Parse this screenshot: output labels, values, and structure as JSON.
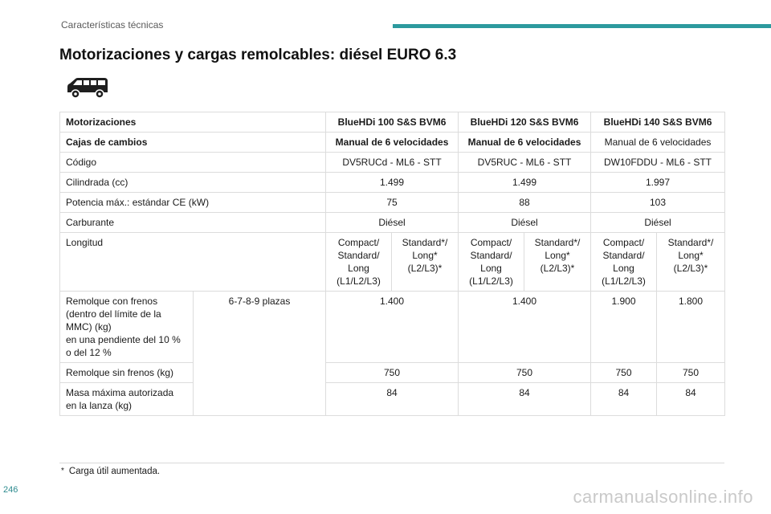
{
  "header": {
    "section": "Características técnicas",
    "accent_color": "#2c9a9e"
  },
  "title": "Motorizaciones y cargas remolcables: diésel EURO 6.3",
  "icon": "van-icon",
  "table": {
    "engines_label": "Motorizaciones",
    "engines": [
      "BlueHDi 100 S&S BVM6",
      "BlueHDi 120 S&S BVM6",
      "BlueHDi 140 S&S BVM6"
    ],
    "gearbox_label": "Cajas de cambios",
    "gearboxes": [
      "Manual de 6 velocidades",
      "Manual de 6 velocidades",
      "Manual de 6 velocidades"
    ],
    "code_label": "Código",
    "codes": [
      "DV5RUCd - ML6 - STT",
      "DV5RUC - ML6 - STT",
      "DW10FDDU - ML6 - STT"
    ],
    "displacement_label": "Cilindrada (cc)",
    "displacements": [
      "1.499",
      "1.499",
      "1.997"
    ],
    "power_label": "Potencia máx.: estándar CE (kW)",
    "powers": [
      "75",
      "88",
      "103"
    ],
    "fuel_label": "Carburante",
    "fuels": [
      "Diésel",
      "Diésel",
      "Diésel"
    ],
    "length_label": "Longitud",
    "lengths": [
      "Compact/\nStandard/\nLong\n(L1/L2/L3)",
      "Standard*/\nLong*\n(L2/L3)*",
      "Compact/\nStandard/\nLong\n(L1/L2/L3)",
      "Standard*/\nLong*\n(L2/L3)*",
      "Compact/\nStandard/\nLong\n(L1/L2/L3)",
      "Standard*/\nLong*\n(L2/L3)*"
    ],
    "braked_label": "Remolque con frenos\n(dentro del límite de la MMC) (kg)\nen una pendiente del 10 % o del 12 %",
    "seats_label": "6-7-8-9 plazas",
    "braked": [
      "1.400",
      "1.400",
      "1.900",
      "1.800"
    ],
    "unbraked_label": "Remolque sin frenos (kg)",
    "unbraked": [
      "750",
      "750",
      "750",
      "750"
    ],
    "drawbar_label": "Masa máxima autorizada\nen la lanza (kg)",
    "drawbar": [
      "84",
      "84",
      "84",
      "84"
    ]
  },
  "footnote": {
    "mark": "*",
    "text": "Carga útil aumentada."
  },
  "page_number": "246",
  "watermark": "carmanualsonline.info"
}
